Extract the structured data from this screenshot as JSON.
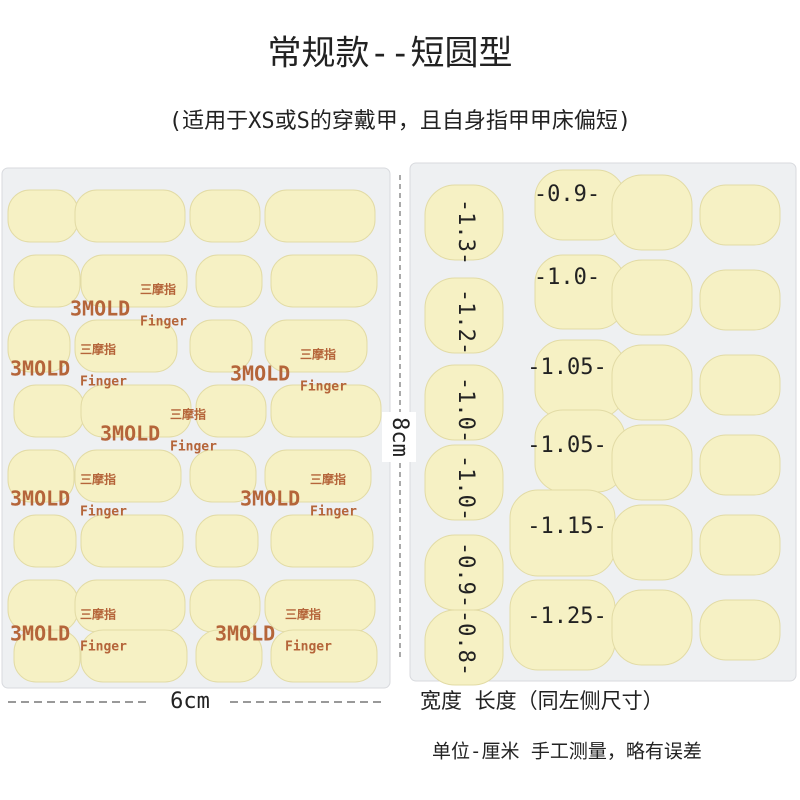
{
  "header": {
    "title": "常规款--短圆型",
    "subtitle": "(适用于XS或S的穿戴甲，且自身指甲甲床偏短)"
  },
  "brand": {
    "logo": "3MOLD",
    "cn": "三摩指",
    "en": "Finger"
  },
  "dimensions": {
    "height": "8cm",
    "width": "6cm"
  },
  "widths": [
    "-1.3-",
    "-1.2-",
    "-1.0-",
    "-1.0-",
    "-0.9-",
    "-0.8-"
  ],
  "lengths": [
    "-0.9-",
    "-1.0-",
    "-1.05-",
    "-1.05-",
    "-1.15-",
    "-1.25-"
  ],
  "legend": "宽度  长度（同左侧尺寸）",
  "note": "单位-厘米 手工测量，略有误差"
}
